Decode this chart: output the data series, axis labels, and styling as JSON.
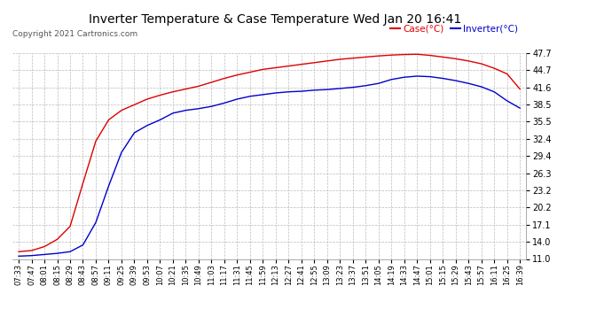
{
  "title": "Inverter Temperature & Case Temperature Wed Jan 20 16:41",
  "copyright": "Copyright 2021 Cartronics.com",
  "legend_case": "Case(°C)",
  "legend_inverter": "Inverter(°C)",
  "case_color": "#dd0000",
  "inverter_color": "#0000cc",
  "bg_color": "#ffffff",
  "grid_color": "#bbbbbb",
  "ylim": [
    11.0,
    47.7
  ],
  "yticks": [
    11.0,
    14.0,
    17.1,
    20.2,
    23.2,
    26.3,
    29.4,
    32.4,
    35.5,
    38.5,
    41.6,
    44.7,
    47.7
  ],
  "x_labels": [
    "07:33",
    "07:47",
    "08:01",
    "08:15",
    "08:29",
    "08:43",
    "08:57",
    "09:11",
    "09:25",
    "09:39",
    "09:53",
    "10:07",
    "10:21",
    "10:35",
    "10:49",
    "11:03",
    "11:17",
    "11:31",
    "11:45",
    "11:59",
    "12:13",
    "12:27",
    "12:41",
    "12:55",
    "13:09",
    "13:23",
    "13:37",
    "13:51",
    "14:05",
    "14:19",
    "14:33",
    "14:47",
    "15:01",
    "15:15",
    "15:29",
    "15:43",
    "15:57",
    "16:11",
    "16:25",
    "16:39"
  ],
  "case_data": [
    12.3,
    12.5,
    13.2,
    14.5,
    16.8,
    24.5,
    32.0,
    35.8,
    37.5,
    38.5,
    39.5,
    40.2,
    40.8,
    41.3,
    41.8,
    42.5,
    43.2,
    43.8,
    44.3,
    44.8,
    45.1,
    45.4,
    45.7,
    46.0,
    46.3,
    46.6,
    46.8,
    47.0,
    47.2,
    47.35,
    47.45,
    47.5,
    47.3,
    47.0,
    46.7,
    46.3,
    45.8,
    45.0,
    44.0,
    41.3
  ],
  "inverter_data": [
    11.5,
    11.6,
    11.8,
    12.0,
    12.3,
    13.5,
    17.5,
    24.0,
    30.0,
    33.5,
    34.8,
    35.8,
    37.0,
    37.5,
    37.8,
    38.2,
    38.8,
    39.5,
    40.0,
    40.3,
    40.6,
    40.8,
    40.9,
    41.1,
    41.2,
    41.4,
    41.6,
    41.9,
    42.3,
    43.0,
    43.4,
    43.6,
    43.5,
    43.2,
    42.8,
    42.3,
    41.7,
    40.8,
    39.2,
    37.9
  ]
}
